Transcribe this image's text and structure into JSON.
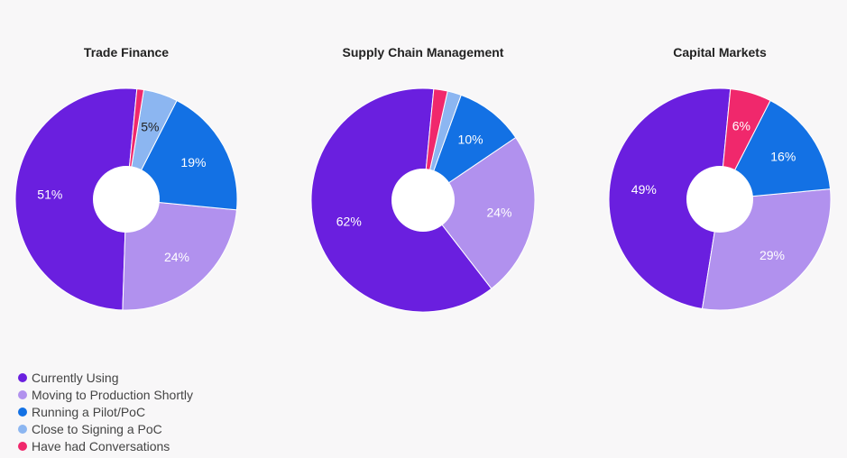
{
  "chart_data": {
    "type": "pie",
    "legend_position": "bottom-left",
    "series_names": [
      "Currently Using",
      "Moving to Production Shortly",
      "Running a Pilot/PoC",
      "Close to Signing a PoC",
      "Have had Conversations"
    ],
    "colors": [
      "#6a1fdf",
      "#b191ee",
      "#1371e4",
      "#8cb6f1",
      "#f0286c"
    ],
    "charts": [
      {
        "title": "Trade Finance",
        "values": [
          51,
          24,
          19,
          5,
          1
        ],
        "labels": [
          "51%",
          "24%",
          "19%",
          "5%",
          ""
        ]
      },
      {
        "title": "Supply Chain Management",
        "values": [
          62,
          24,
          10,
          2,
          2
        ],
        "labels": [
          "62%",
          "24%",
          "10%",
          "",
          ""
        ]
      },
      {
        "title": "Capital Markets",
        "values": [
          49,
          29,
          16,
          0,
          6
        ],
        "labels": [
          "49%",
          "29%",
          "16%",
          "",
          "6%"
        ]
      }
    ]
  }
}
